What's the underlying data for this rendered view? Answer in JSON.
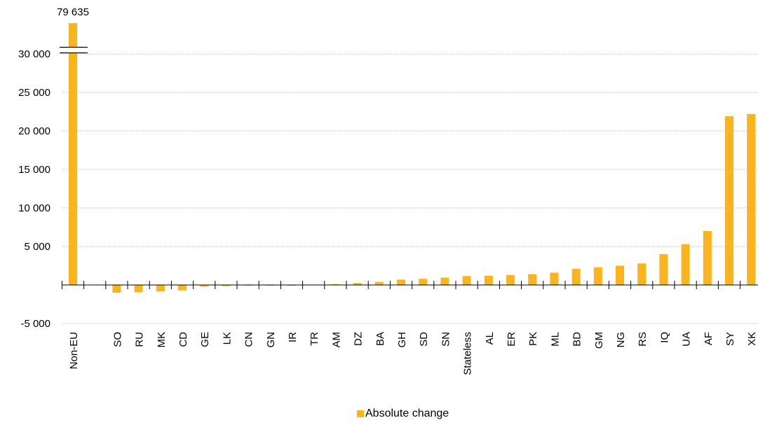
{
  "chart_data": {
    "type": "bar",
    "categories": [
      "Non-EU",
      "",
      "SO",
      "RU",
      "MK",
      "CD",
      "GE",
      "LK",
      "CN",
      "GN",
      "IR",
      "TR",
      "AM",
      "DZ",
      "BA",
      "GH",
      "SD",
      "SN",
      "Stateless",
      "AL",
      "ER",
      "PK",
      "ML",
      "BD",
      "GM",
      "NG",
      "RS",
      "IQ",
      "UA",
      "AF",
      "SY",
      "XK"
    ],
    "series": [
      {
        "name": "Absolute change",
        "color": "#FAB41E",
        "values": [
          79635,
          null,
          -1000,
          -950,
          -850,
          -700,
          -200,
          -150,
          -30,
          -20,
          -10,
          50,
          100,
          250,
          400,
          700,
          800,
          950,
          1150,
          1200,
          1300,
          1400,
          1600,
          2100,
          2300,
          2500,
          2800,
          4000,
          5300,
          7000,
          21900,
          22200
        ]
      }
    ],
    "data_labels": [
      {
        "category": "Non-EU",
        "text": "79 635"
      }
    ],
    "y_axis_break": {
      "at": 30500,
      "note": "Non-EU bar truncated"
    },
    "ylim": [
      -5000,
      34000
    ],
    "yticks": [
      {
        "value": -5000,
        "label": "-5 000"
      },
      {
        "value": 0,
        "label": ""
      },
      {
        "value": 5000,
        "label": "5 000"
      },
      {
        "value": 10000,
        "label": "10 000"
      },
      {
        "value": 15000,
        "label": "15 000"
      },
      {
        "value": 20000,
        "label": "20 000"
      },
      {
        "value": 25000,
        "label": "25 000"
      },
      {
        "value": 30000,
        "label": "30 000"
      }
    ],
    "grid": true,
    "legend_position": "bottom-center",
    "title": "",
    "xlabel": "",
    "ylabel": ""
  }
}
